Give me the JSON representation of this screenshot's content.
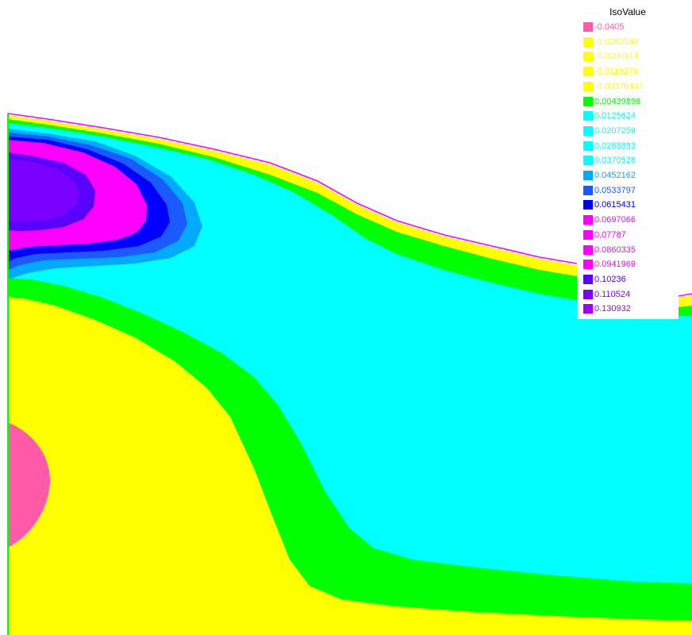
{
  "chart_data": {
    "type": "contour",
    "legend": {
      "title": "IsoValue",
      "placement": "top-right",
      "levels": [
        {
          "value": "-0.0405",
          "color": "#ff5aa8"
        },
        {
          "value": "-0.0282548",
          "color": "#ffff00"
        },
        {
          "value": "-0.0200914",
          "color": "#ffff00"
        },
        {
          "value": "-0.0119276",
          "color": "#ffff00"
        },
        {
          "value": "-0.00376447",
          "color": "#ffff00"
        },
        {
          "value": "0.00439898",
          "color": "#00ff00"
        },
        {
          "value": "0.0125624",
          "color": "#00ffff"
        },
        {
          "value": "0.0207259",
          "color": "#00ffff"
        },
        {
          "value": "0.0288893",
          "color": "#00ffff"
        },
        {
          "value": "0.0370528",
          "color": "#00ffff"
        },
        {
          "value": "0.0452162",
          "color": "#00aaff"
        },
        {
          "value": "0.0533797",
          "color": "#1a5aff"
        },
        {
          "value": "0.0615431",
          "color": "#0000ff"
        },
        {
          "value": "0.0697066",
          "color": "#ff00ff"
        },
        {
          "value": "0.07787",
          "color": "#ff00ff"
        },
        {
          "value": "0.0860335",
          "color": "#ff00ff"
        },
        {
          "value": "0.0941969",
          "color": "#ff00ff"
        },
        {
          "value": "0.10236",
          "color": "#5a00ff"
        },
        {
          "value": "0.110524",
          "color": "#7a00ff"
        },
        {
          "value": "0.130932",
          "color": "#9a00ff"
        }
      ]
    },
    "colors": {
      "free_surface": "#ff00ff",
      "boundary": "#00ff00",
      "background": "#ffffff"
    }
  }
}
